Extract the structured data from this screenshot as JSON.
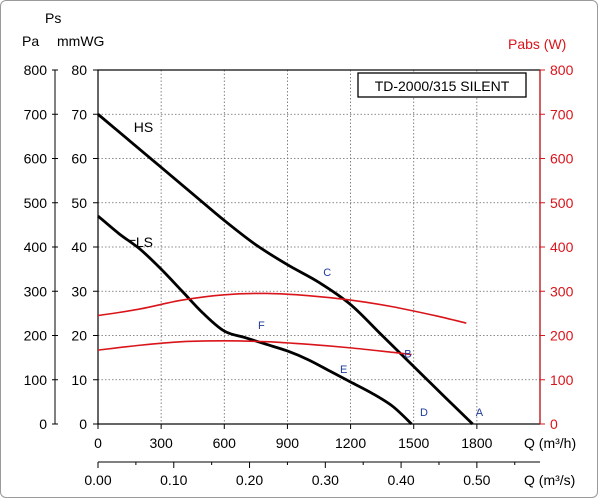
{
  "chart_data": {
    "type": "line",
    "title": "TD-2000/315 SILENT",
    "y_left": {
      "label_top": "Ps",
      "label_pa": "Pa",
      "label_mmwg": "mmWG",
      "pa_ticks": [
        "0",
        "100",
        "200",
        "300",
        "400",
        "500",
        "600",
        "700",
        "800"
      ],
      "mmwg_ticks": [
        "0",
        "10",
        "20",
        "30",
        "40",
        "50",
        "60",
        "70",
        "80"
      ],
      "range_mmwg": [
        0,
        80
      ]
    },
    "y_right": {
      "label": "Pabs (W)",
      "ticks": [
        "0",
        "100",
        "200",
        "300",
        "400",
        "500",
        "600",
        "700",
        "800"
      ],
      "range": [
        0,
        800
      ],
      "color": "#d9141a"
    },
    "x_primary": {
      "label": "Q (m³/h)",
      "ticks": [
        "0",
        "300",
        "600",
        "900",
        "1200",
        "1500",
        "1800"
      ],
      "range": [
        0,
        2100
      ]
    },
    "x_secondary": {
      "label": "Q (m³/s)",
      "ticks": [
        "0.00",
        "0.10",
        "0.20",
        "0.30",
        "0.40",
        "0.50"
      ]
    },
    "series": [
      {
        "name": "HS",
        "axis": "left",
        "color": "#000000",
        "x": [
          0,
          150,
          300,
          450,
          600,
          750,
          900,
          1050,
          1200,
          1350,
          1500,
          1650,
          1780
        ],
        "y": [
          70,
          64,
          58,
          52,
          46,
          40.5,
          36,
          32,
          27,
          20,
          13,
          6,
          0
        ]
      },
      {
        "name": "LS",
        "axis": "left",
        "color": "#000000",
        "x": [
          0,
          100,
          200,
          300,
          400,
          500,
          600,
          700,
          800,
          900,
          1000,
          1100,
          1200,
          1300,
          1400,
          1490
        ],
        "y": [
          47,
          43,
          39.5,
          35,
          30,
          25,
          21,
          19.5,
          18,
          16.5,
          14.5,
          12,
          9.5,
          7,
          4,
          0
        ]
      },
      {
        "name": "",
        "axis": "right",
        "color": "#d9141a",
        "x": [
          0,
          200,
          400,
          600,
          800,
          1000,
          1200,
          1400,
          1600,
          1750
        ],
        "y": [
          245,
          260,
          280,
          292,
          295,
          290,
          280,
          265,
          245,
          228
        ]
      },
      {
        "name": "",
        "axis": "right",
        "color": "#d9141a",
        "x": [
          0,
          200,
          400,
          600,
          800,
          1000,
          1200,
          1400,
          1490
        ],
        "y": [
          167,
          178,
          186,
          188,
          186,
          180,
          172,
          162,
          157
        ]
      }
    ],
    "annotations": [
      {
        "text": "A",
        "x": 1795,
        "y": 1.8
      },
      {
        "text": "B",
        "x": 1455,
        "y": 15
      },
      {
        "text": "C",
        "x": 1070,
        "y": 33.5
      },
      {
        "text": "D",
        "x": 1530,
        "y": 1.8
      },
      {
        "text": "E",
        "x": 1150,
        "y": 11.5
      },
      {
        "text": "F",
        "x": 760,
        "y": 21.5
      }
    ],
    "grid": true,
    "legend": "none"
  }
}
